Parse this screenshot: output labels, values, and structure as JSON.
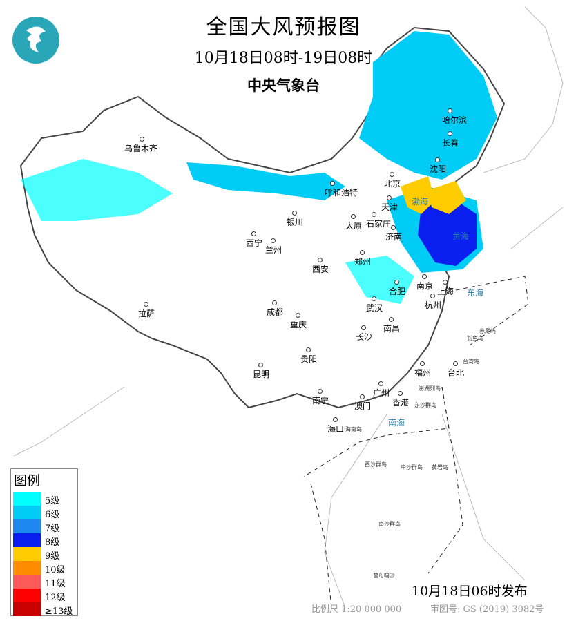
{
  "header": {
    "title": "全国大风预报图",
    "period": "10月18日08时-19日08时",
    "agency": "中央气象台"
  },
  "legend": {
    "title": "图例",
    "items": [
      {
        "label": "5级",
        "color": "#00ffff"
      },
      {
        "label": "6级",
        "color": "#00ccf5"
      },
      {
        "label": "7级",
        "color": "#1e88f0"
      },
      {
        "label": "8级",
        "color": "#0a1ef0"
      },
      {
        "label": "9级",
        "color": "#ffcc00"
      },
      {
        "label": "10级",
        "color": "#ff8c00"
      },
      {
        "label": "11级",
        "color": "#ff5a5a"
      },
      {
        "label": "12级",
        "color": "#ff0000"
      },
      {
        "label": "≥13级",
        "color": "#c80000"
      }
    ]
  },
  "footer": {
    "issued": "10月18日06时发布",
    "scale": "比例尺 1:20 000 000",
    "review": "审图号: GS (2019) 3082号"
  },
  "cities": [
    "乌鲁木齐",
    "哈尔滨",
    "长春",
    "沈阳",
    "北京",
    "天津",
    "呼和浩特",
    "银川",
    "太原",
    "石家庄",
    "济南",
    "西宁",
    "兰州",
    "西安",
    "郑州",
    "合肥",
    "南京",
    "上海",
    "杭州",
    "武汉",
    "南昌",
    "长沙",
    "成都",
    "重庆",
    "拉萨",
    "贵阳",
    "昆明",
    "福州",
    "台北",
    "南宁",
    "广州",
    "香港",
    "澳门",
    "海口"
  ],
  "seas": [
    "渤海",
    "黄海",
    "东海",
    "南海"
  ],
  "islands": [
    "东沙群岛",
    "海南岛",
    "西沙群岛",
    "中沙群岛",
    "黄岩岛",
    "南沙群岛",
    "曾母暗沙",
    "钓鱼岛",
    "赤尾屿",
    "台湾岛",
    "澎湖列岛"
  ]
}
